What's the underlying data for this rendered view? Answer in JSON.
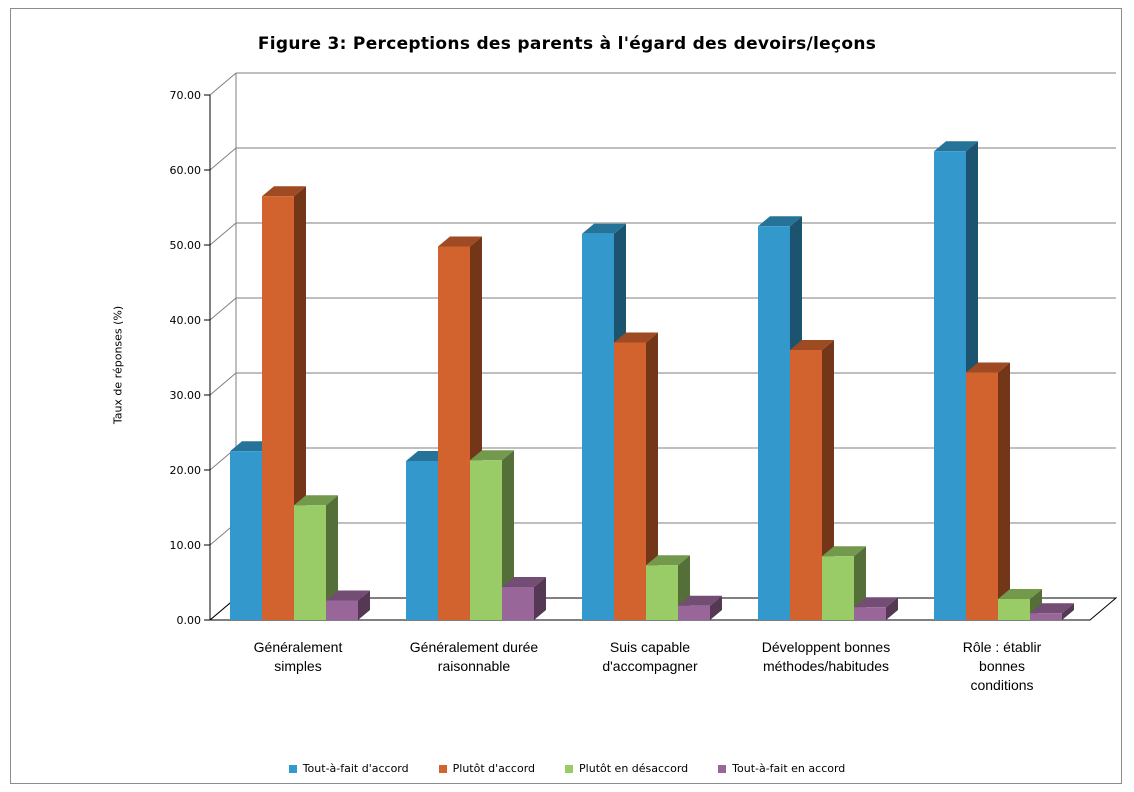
{
  "chart_data": {
    "type": "bar",
    "title": "Figure 3: Perceptions des parents à l'égard des devoirs/leçons",
    "ylabel": "Taux de réponses (%)",
    "xlabel": "",
    "ylim": [
      0,
      70
    ],
    "y_ticks": [
      "0.00",
      "10.00",
      "20.00",
      "30.00",
      "40.00",
      "50.00",
      "60.00",
      "70.00"
    ],
    "grid": true,
    "legend_position": "bottom",
    "categories": [
      [
        "Généralement",
        "simples"
      ],
      [
        "Généralement durée",
        "raisonnable"
      ],
      [
        "Suis capable",
        "d'accompagner"
      ],
      [
        "Développent bonnes",
        "méthodes/habitudes"
      ],
      [
        "Rôle : établir",
        "bonnes",
        "conditions"
      ]
    ],
    "series": [
      {
        "name": "Tout-à-fait d'accord",
        "color": "#3399cc",
        "values": [
          22.5,
          21.2,
          51.5,
          52.5,
          62.5
        ]
      },
      {
        "name": "Plutôt d'accord",
        "color": "#d2622e",
        "values": [
          56.5,
          49.8,
          37.0,
          36.0,
          33.0
        ]
      },
      {
        "name": "Plutôt en désaccord",
        "color": "#99cc66",
        "values": [
          15.3,
          21.3,
          7.3,
          8.5,
          2.8
        ]
      },
      {
        "name": "Tout-à-fait en accord",
        "color": "#996699",
        "values": [
          2.6,
          4.4,
          1.9,
          1.7,
          0.9
        ]
      }
    ]
  }
}
